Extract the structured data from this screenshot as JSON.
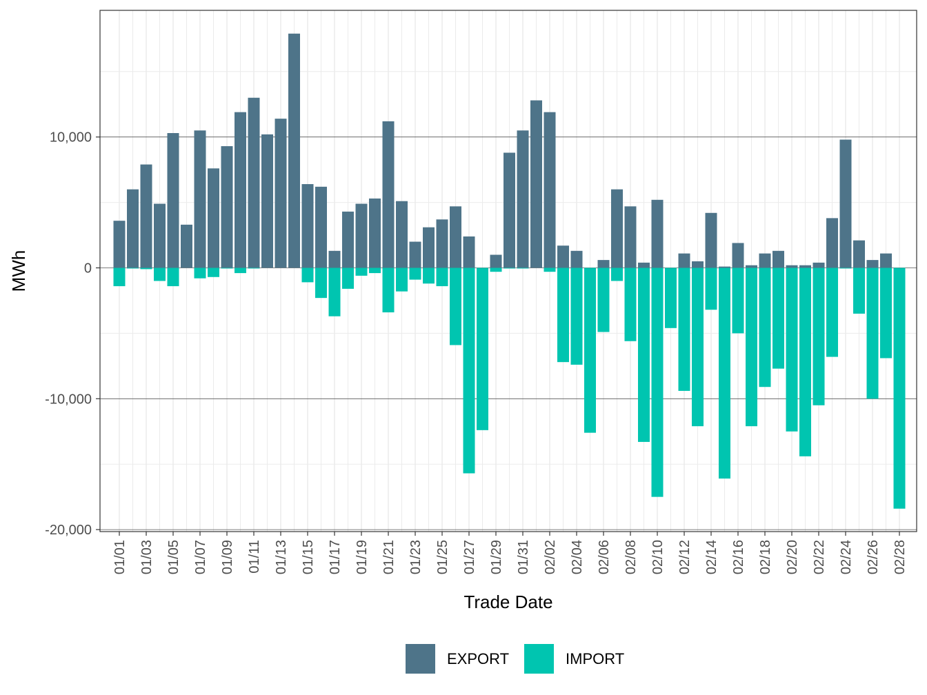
{
  "chart_data": {
    "type": "bar",
    "xlabel": "Trade Date",
    "ylabel": "MWh",
    "ylim": [
      -20000,
      20000
    ],
    "yticks": [
      -20000,
      -10000,
      0,
      10000
    ],
    "ytick_labels": [
      "-20,000",
      "-10,000",
      "0",
      "10,000"
    ],
    "legend_position": "bottom",
    "grid": true,
    "categories": [
      "01/01",
      "01/02",
      "01/03",
      "01/04",
      "01/05",
      "01/06",
      "01/07",
      "01/08",
      "01/09",
      "01/10",
      "01/11",
      "01/12",
      "01/13",
      "01/14",
      "01/15",
      "01/16",
      "01/17",
      "01/18",
      "01/19",
      "01/20",
      "01/21",
      "01/22",
      "01/23",
      "01/24",
      "01/25",
      "01/26",
      "01/27",
      "01/28",
      "01/29",
      "01/30",
      "01/31",
      "02/01",
      "02/02",
      "02/03",
      "02/04",
      "02/05",
      "02/06",
      "02/07",
      "02/08",
      "02/09",
      "02/10",
      "02/11",
      "02/12",
      "02/13",
      "02/14",
      "02/15",
      "02/16",
      "02/17",
      "02/18",
      "02/19",
      "02/20",
      "02/21",
      "02/22",
      "02/23",
      "02/24",
      "02/25",
      "02/26",
      "02/27",
      "02/28"
    ],
    "xtick_labels": [
      "01/01",
      "01/03",
      "01/05",
      "01/07",
      "01/09",
      "01/11",
      "01/13",
      "01/15",
      "01/17",
      "01/19",
      "01/21",
      "01/23",
      "01/25",
      "01/27",
      "01/29",
      "01/31",
      "02/02",
      "02/04",
      "02/06",
      "02/08",
      "02/10",
      "02/12",
      "02/14",
      "02/16",
      "02/18",
      "02/20",
      "02/22",
      "02/24",
      "02/26",
      "02/28"
    ],
    "series": [
      {
        "name": "EXPORT",
        "color": "#4e7489",
        "values": [
          3600,
          6000,
          7900,
          4900,
          10300,
          3300,
          10500,
          7600,
          9300,
          11900,
          13000,
          10200,
          11400,
          17900,
          6400,
          6200,
          1300,
          4300,
          4900,
          5300,
          11200,
          5100,
          2000,
          3100,
          3700,
          4700,
          2400,
          0,
          1000,
          8800,
          10500,
          12800,
          11900,
          1700,
          1300,
          0,
          600,
          6000,
          4700,
          400,
          5200,
          0,
          1100,
          500,
          4200,
          100,
          1900,
          200,
          1100,
          1300,
          200,
          200,
          400,
          3800,
          9800,
          2100,
          600,
          1100,
          0
        ]
      },
      {
        "name": "IMPORT",
        "color": "#00c5b0",
        "values": [
          -1400,
          -50,
          -100,
          -1000,
          -1400,
          0,
          -800,
          -700,
          -50,
          -400,
          -50,
          0,
          0,
          0,
          -1100,
          -2300,
          -3700,
          -1600,
          -600,
          -400,
          -3400,
          -1800,
          -900,
          -1200,
          -1400,
          -5900,
          -15700,
          -12400,
          -300,
          -50,
          -50,
          0,
          -300,
          -7200,
          -7400,
          -12600,
          -4900,
          -1000,
          -5600,
          -13300,
          -17500,
          -4600,
          -9400,
          -12100,
          -3200,
          -16100,
          -5000,
          -12100,
          -9100,
          -7700,
          -12500,
          -14400,
          -10500,
          -6800,
          -50,
          -3500,
          -10000,
          -6900,
          -18400
        ]
      }
    ]
  }
}
